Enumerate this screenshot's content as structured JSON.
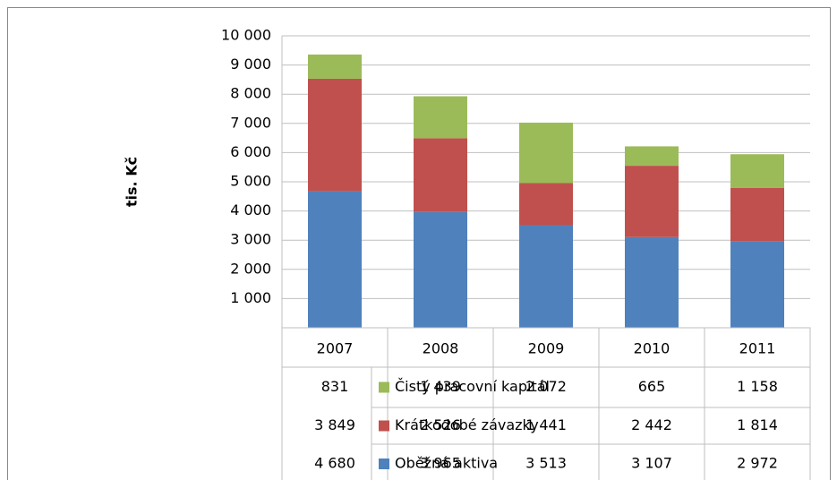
{
  "chart_data": {
    "type": "stacked_bar",
    "y_label": "tis. Kč",
    "categories": [
      "2007",
      "2008",
      "2009",
      "2010",
      "2011"
    ],
    "series": [
      {
        "name": "Oběžná aktiva",
        "color": "#4f81bd",
        "values": [
          4680,
          3965,
          3513,
          3107,
          2972
        ],
        "value_labels": [
          "4 680",
          "3 965",
          "3 513",
          "3 107",
          "2 972"
        ]
      },
      {
        "name": "Krátkodobé závazky",
        "color": "#c0504d",
        "values": [
          3849,
          2526,
          1441,
          2442,
          1814
        ],
        "value_labels": [
          "3 849",
          "2 526",
          "1 441",
          "2 442",
          "1 814"
        ]
      },
      {
        "name": "Čistý pracovní kapitál",
        "color": "#9bbb59",
        "values": [
          831,
          1439,
          2072,
          665,
          1158
        ],
        "value_labels": [
          "831",
          "1 439",
          "2 072",
          "665",
          "1 158"
        ]
      }
    ],
    "ylim": [
      0,
      10000
    ],
    "yticks": [
      {
        "value": 1000,
        "label": "1 000"
      },
      {
        "value": 2000,
        "label": "2 000"
      },
      {
        "value": 3000,
        "label": "3 000"
      },
      {
        "value": 4000,
        "label": "4 000"
      },
      {
        "value": 5000,
        "label": "5 000"
      },
      {
        "value": 6000,
        "label": "6 000"
      },
      {
        "value": 7000,
        "label": "7 000"
      },
      {
        "value": 8000,
        "label": "8 000"
      },
      {
        "value": 9000,
        "label": "9 000"
      },
      {
        "value": 10000,
        "label": "10 000"
      }
    ],
    "grid": true
  }
}
